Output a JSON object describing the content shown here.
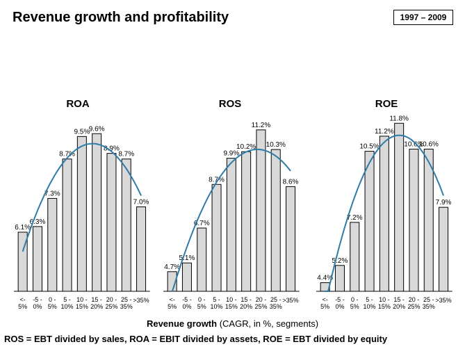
{
  "title": "Revenue growth and profitability",
  "period": "1997 – 2009",
  "x_axis_title": {
    "main": "Revenue growth",
    "detail": "(CAGR, in %, segments)"
  },
  "footnote": "ROS = EBT divided by sales, ROA = EBIT divided by assets, ROE = EBT divided by equity",
  "colors": {
    "bar_fill": "#d9d9d9",
    "bar_stroke": "#000000",
    "trend": "#2e7ba7"
  },
  "chart_data": [
    {
      "type": "bar",
      "title": "ROA",
      "categories": [
        [
          "<-",
          "5%"
        ],
        [
          "-5 -",
          "0%"
        ],
        [
          "0 -",
          "5%"
        ],
        [
          "5 -",
          "10%"
        ],
        [
          "10 -",
          "15%"
        ],
        [
          "15 -",
          "20%"
        ],
        [
          "20 -",
          "25%"
        ],
        [
          "25 -",
          "35%"
        ],
        [
          ">35%"
        ]
      ],
      "values": [
        6.1,
        6.3,
        7.3,
        8.7,
        9.5,
        9.6,
        8.9,
        8.7,
        7.0
      ],
      "value_labels": [
        "6.1%",
        "6.3%",
        "7.3%",
        "8.7%",
        "9.5%",
        "9.6%",
        "8.9%",
        "8.7%",
        "7.0%"
      ],
      "ylim": [
        4,
        10.2
      ],
      "trendline": true,
      "grid": false
    },
    {
      "type": "bar",
      "title": "ROS",
      "categories": [
        [
          "<-",
          "5%"
        ],
        [
          "-5 -",
          "0%"
        ],
        [
          "0 -",
          "5%"
        ],
        [
          "5 -",
          "10%"
        ],
        [
          "10 -",
          "15%"
        ],
        [
          "15 -",
          "20%"
        ],
        [
          "20 -",
          "25%"
        ],
        [
          "25 -",
          "35%"
        ],
        [
          ">35%"
        ]
      ],
      "values": [
        4.7,
        5.1,
        6.7,
        8.7,
        9.9,
        10.2,
        11.2,
        10.3,
        8.6
      ],
      "value_labels": [
        "4.7%",
        "5.1%",
        "6.7%",
        "8.7%",
        "9.9%",
        "10.2%",
        "11.2%",
        "10.3%",
        "8.6%"
      ],
      "ylim": [
        3.8,
        11.8
      ],
      "trendline": true,
      "grid": false
    },
    {
      "type": "bar",
      "title": "ROE",
      "categories": [
        [
          "<-",
          "5%"
        ],
        [
          "-5 -",
          "0%"
        ],
        [
          "0 -",
          "5%"
        ],
        [
          "5 -",
          "10%"
        ],
        [
          "10 -",
          "15%"
        ],
        [
          "15 -",
          "20%"
        ],
        [
          "20 -",
          "25%"
        ],
        [
          "25 -",
          "35%"
        ],
        [
          ">35%"
        ]
      ],
      "values": [
        4.4,
        5.2,
        7.2,
        10.5,
        11.2,
        11.8,
        10.6,
        10.6,
        7.9
      ],
      "value_labels": [
        "4.4%",
        "5.2%",
        "7.2%",
        "10.5%",
        "11.2%",
        "11.8%",
        "10.6%",
        "10.6%",
        "7.9%"
      ],
      "ylim": [
        4.0,
        12.1
      ],
      "trendline": true,
      "grid": false
    }
  ]
}
